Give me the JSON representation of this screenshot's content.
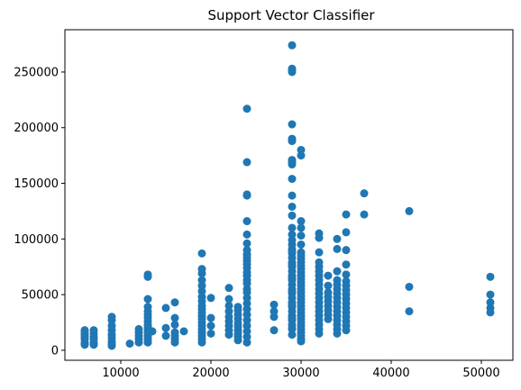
{
  "chart_data": {
    "type": "scatter",
    "title": "Support Vector Classifier",
    "xlabel": "",
    "ylabel": "",
    "xlim": [
      3800,
      53500
    ],
    "ylim": [
      -9000,
      288000
    ],
    "xticks": [
      10000,
      20000,
      30000,
      40000,
      50000
    ],
    "xtick_labels": [
      "10000",
      "20000",
      "30000",
      "40000",
      "50000"
    ],
    "yticks": [
      0,
      50000,
      100000,
      150000,
      200000,
      250000
    ],
    "ytick_labels": [
      "0",
      "50000",
      "100000",
      "150000",
      "200000",
      "250000"
    ],
    "grid": false,
    "legend": "none",
    "marker_color": "#1f77b4",
    "series": [
      {
        "x": [
          6000,
          6000,
          6000,
          6000,
          6000,
          6000,
          6000,
          7000,
          7000,
          7000,
          7000,
          7000,
          7000,
          9000,
          9000,
          9000,
          9000,
          9000,
          9000,
          9000,
          9000,
          9000,
          11000,
          12000,
          12000,
          12000,
          12000,
          12000,
          13000,
          13000,
          13000,
          13000,
          13000,
          13000,
          13000,
          13000,
          13000,
          13000,
          13000,
          13000,
          13000,
          13000,
          13000,
          13000,
          13000,
          13500,
          15000,
          15000,
          15000,
          16000,
          16000,
          16000,
          16000,
          16000,
          16000,
          16000,
          17000,
          19000,
          19000,
          19000,
          19000,
          19000,
          19000,
          19000,
          19000,
          19000,
          19000,
          19000,
          19000,
          19000,
          19000,
          19000,
          19000,
          19000,
          19000,
          19000,
          19000,
          20000,
          20000,
          20000,
          20000,
          22000,
          22000,
          22000,
          22000,
          22000,
          22000,
          22000,
          22000,
          22000,
          23000,
          23000,
          23000,
          23000,
          23000,
          23000,
          23000,
          23000,
          23000,
          23000,
          24000,
          24000,
          24000,
          24000,
          24000,
          24000,
          24000,
          24000,
          24000,
          24000,
          24000,
          24000,
          24000,
          24000,
          24000,
          24000,
          24000,
          24000,
          24000,
          24000,
          24000,
          24000,
          24000,
          24000,
          24000,
          24000,
          24000,
          24000,
          27000,
          27000,
          27000,
          27000,
          29000,
          29000,
          29000,
          29000,
          29000,
          29000,
          29000,
          29000,
          29000,
          29000,
          29000,
          29000,
          29000,
          29000,
          29000,
          29000,
          29000,
          29000,
          29000,
          29000,
          29000,
          29000,
          29000,
          29000,
          29000,
          29000,
          29000,
          29000,
          29000,
          29000,
          29000,
          29000,
          29000,
          29000,
          29000,
          29000,
          29000,
          29000,
          29000,
          29000,
          29000,
          29000,
          29000,
          29000,
          29000,
          30000,
          30000,
          30000,
          30000,
          30000,
          30000,
          30000,
          30000,
          30000,
          30000,
          30000,
          30000,
          30000,
          30000,
          30000,
          30000,
          30000,
          30000,
          30000,
          30000,
          30000,
          30000,
          30000,
          30000,
          30000,
          30000,
          30000,
          30000,
          30000,
          30000,
          30000,
          30000,
          30000,
          30000,
          32000,
          32000,
          32000,
          32000,
          32000,
          32000,
          32000,
          32000,
          32000,
          32000,
          32000,
          32000,
          32000,
          32000,
          32000,
          32000,
          32000,
          32000,
          32000,
          32000,
          33000,
          33000,
          33000,
          33000,
          33000,
          33000,
          33000,
          33000,
          33000,
          34000,
          34000,
          34000,
          34000,
          34000,
          34000,
          34000,
          34000,
          34000,
          34000,
          34000,
          34000,
          34000,
          34000,
          34000,
          34000,
          35000,
          35000,
          35000,
          35000,
          35000,
          35000,
          35000,
          35000,
          35000,
          35000,
          35000,
          35000,
          35000,
          35000,
          35000,
          35000,
          35000,
          37000,
          37000,
          42000,
          42000,
          42000,
          51000,
          51000,
          51000,
          51000,
          51000
        ],
        "y": [
          5000,
          7000,
          10000,
          12000,
          14000,
          16000,
          18000,
          5000,
          7000,
          10000,
          12000,
          15000,
          18000,
          4000,
          6000,
          8000,
          11000,
          14000,
          18000,
          22000,
          27000,
          30000,
          6000,
          7000,
          10000,
          13000,
          16000,
          19000,
          7000,
          9000,
          11000,
          13000,
          15000,
          17000,
          19000,
          21000,
          23000,
          26000,
          29000,
          32000,
          35000,
          39000,
          46000,
          66000,
          68000,
          17000,
          13000,
          20000,
          38000,
          7000,
          10000,
          13000,
          16000,
          23000,
          29000,
          43000,
          17000,
          7000,
          10000,
          13000,
          16000,
          19000,
          22000,
          25000,
          28000,
          31000,
          34000,
          37000,
          40000,
          44000,
          48000,
          53000,
          58000,
          63000,
          69000,
          73000,
          87000,
          15000,
          22000,
          29000,
          47000,
          14000,
          18000,
          22000,
          26000,
          30000,
          35000,
          40000,
          46000,
          56000,
          9000,
          12000,
          15000,
          18000,
          21000,
          24000,
          28000,
          32000,
          36000,
          39000,
          7000,
          12000,
          17000,
          22000,
          27000,
          32000,
          37000,
          42000,
          47000,
          52000,
          55000,
          60000,
          63000,
          67000,
          70000,
          74000,
          77000,
          80000,
          83000,
          86000,
          90000,
          96000,
          104000,
          116000,
          139000,
          140000,
          169000,
          217000,
          18000,
          30000,
          35000,
          41000,
          14000,
          19000,
          23000,
          27000,
          31000,
          35000,
          39000,
          43000,
          47000,
          51000,
          55000,
          59000,
          63000,
          67000,
          71000,
          75000,
          79000,
          83000,
          87000,
          91000,
          95000,
          99000,
          104000,
          110000,
          121000,
          129000,
          139000,
          154000,
          167000,
          169000,
          171000,
          188000,
          190000,
          203000,
          250000,
          252000,
          253000,
          274000,
          20000,
          29000,
          41000,
          53000,
          65000,
          77000,
          89000,
          8000,
          10000,
          13000,
          16000,
          19000,
          22000,
          25000,
          28000,
          31000,
          34000,
          37000,
          40000,
          43000,
          46000,
          49000,
          52000,
          55000,
          58000,
          61000,
          64000,
          67000,
          70000,
          73000,
          76000,
          79000,
          82000,
          85000,
          88000,
          95000,
          103000,
          110000,
          116000,
          175000,
          180000,
          15000,
          19000,
          23000,
          27000,
          31000,
          35000,
          39000,
          43000,
          47000,
          51000,
          55000,
          59000,
          63000,
          67000,
          71000,
          75000,
          79000,
          88000,
          101000,
          105000,
          28000,
          32000,
          36000,
          40000,
          44000,
          48000,
          52000,
          58000,
          67000,
          15000,
          19000,
          23000,
          27000,
          31000,
          35000,
          39000,
          43000,
          47000,
          51000,
          55000,
          59000,
          63000,
          71000,
          91000,
          100000,
          18000,
          22000,
          26000,
          30000,
          34000,
          38000,
          42000,
          46000,
          50000,
          54000,
          58000,
          62000,
          68000,
          77000,
          90000,
          106000,
          122000,
          122000,
          141000,
          35000,
          57000,
          125000,
          34000,
          38000,
          43000,
          50000,
          66000
        ]
      }
    ]
  }
}
